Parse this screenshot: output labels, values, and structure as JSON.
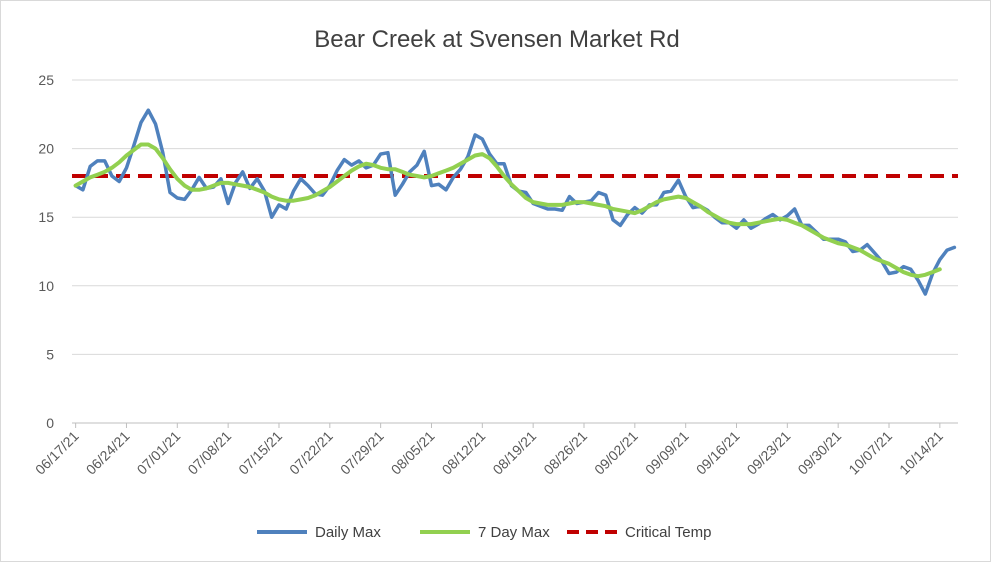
{
  "chart_data": {
    "type": "line",
    "title": "Bear Creek at Svensen Market Rd",
    "xlabel": "",
    "ylabel": "",
    "ylim": [
      0,
      25
    ],
    "yticks": [
      0,
      5,
      10,
      15,
      20,
      25
    ],
    "grid": "horizontal",
    "legend_position": "bottom",
    "x_tick_labels": [
      "06/17/21",
      "06/24/21",
      "07/01/21",
      "07/08/21",
      "07/15/21",
      "07/22/21",
      "07/29/21",
      "08/05/21",
      "08/12/21",
      "08/19/21",
      "08/26/21",
      "09/02/21",
      "09/09/21",
      "09/16/21",
      "09/23/21",
      "09/30/21",
      "10/07/21",
      "10/14/21"
    ],
    "x_start": "06/17/21",
    "series": [
      {
        "name": "Daily Max",
        "color": "#4f81bd",
        "style": "solid",
        "values": [
          17.3,
          17.0,
          18.7,
          19.1,
          19.1,
          18.0,
          17.6,
          18.6,
          20.2,
          21.9,
          22.8,
          21.8,
          19.7,
          16.8,
          16.4,
          16.3,
          17.0,
          17.9,
          17.1,
          17.2,
          17.8,
          16.0,
          17.5,
          18.3,
          17.1,
          17.8,
          16.9,
          15.0,
          15.9,
          15.6,
          16.9,
          17.8,
          17.3,
          16.7,
          16.6,
          17.3,
          18.4,
          19.2,
          18.8,
          19.1,
          18.6,
          18.8,
          19.6,
          19.7,
          16.6,
          17.4,
          18.3,
          18.8,
          19.8,
          17.3,
          17.4,
          17.0,
          17.9,
          18.5,
          19.4,
          21.0,
          20.7,
          19.6,
          18.9,
          18.9,
          17.3,
          16.9,
          16.8,
          16.0,
          15.8,
          15.6,
          15.6,
          15.5,
          16.5,
          16.0,
          16.1,
          16.2,
          16.8,
          16.6,
          14.8,
          14.4,
          15.2,
          15.7,
          15.3,
          15.9,
          15.9,
          16.8,
          16.9,
          17.7,
          16.5,
          15.7,
          15.8,
          15.5,
          15.0,
          14.6,
          14.6,
          14.2,
          14.8,
          14.2,
          14.5,
          14.9,
          15.2,
          14.8,
          15.1,
          15.6,
          14.4,
          14.4,
          13.9,
          13.4,
          13.4,
          13.4,
          13.2,
          12.5,
          12.6,
          13.0,
          12.4,
          11.8,
          10.9,
          11.0,
          11.4,
          11.2,
          10.4,
          9.4,
          10.9,
          11.9,
          12.6,
          12.8
        ]
      },
      {
        "name": "7 Day Max",
        "color": "#92d050",
        "style": "solid",
        "values": [
          17.3,
          17.6,
          17.9,
          18.1,
          18.3,
          18.6,
          19.0,
          19.5,
          19.9,
          20.3,
          20.3,
          20.0,
          19.3,
          18.5,
          17.8,
          17.3,
          17.0,
          17.0,
          17.1,
          17.3,
          17.5,
          17.5,
          17.4,
          17.3,
          17.2,
          17.0,
          16.8,
          16.5,
          16.3,
          16.2,
          16.2,
          16.3,
          16.4,
          16.6,
          16.9,
          17.2,
          17.6,
          18.0,
          18.4,
          18.7,
          18.9,
          18.8,
          18.6,
          18.5,
          18.5,
          18.3,
          18.1,
          18.0,
          17.9,
          18.0,
          18.2,
          18.4,
          18.6,
          18.9,
          19.2,
          19.5,
          19.6,
          19.3,
          18.7,
          18.0,
          17.4,
          16.9,
          16.4,
          16.1,
          16.0,
          15.9,
          15.9,
          15.9,
          16.0,
          16.1,
          16.1,
          16.0,
          15.9,
          15.8,
          15.6,
          15.5,
          15.4,
          15.3,
          15.5,
          15.8,
          16.1,
          16.3,
          16.4,
          16.5,
          16.4,
          16.1,
          15.8,
          15.4,
          15.1,
          14.8,
          14.6,
          14.5,
          14.5,
          14.5,
          14.6,
          14.7,
          14.8,
          14.9,
          14.8,
          14.6,
          14.4,
          14.1,
          13.8,
          13.5,
          13.3,
          13.1,
          13.0,
          12.8,
          12.6,
          12.3,
          12.0,
          11.8,
          11.6,
          11.3,
          11.0,
          10.8,
          10.7,
          10.8,
          11.0,
          11.2
        ]
      },
      {
        "name": "Critical Temp",
        "color": "#c00000",
        "style": "dashed",
        "constant": 18
      }
    ]
  }
}
